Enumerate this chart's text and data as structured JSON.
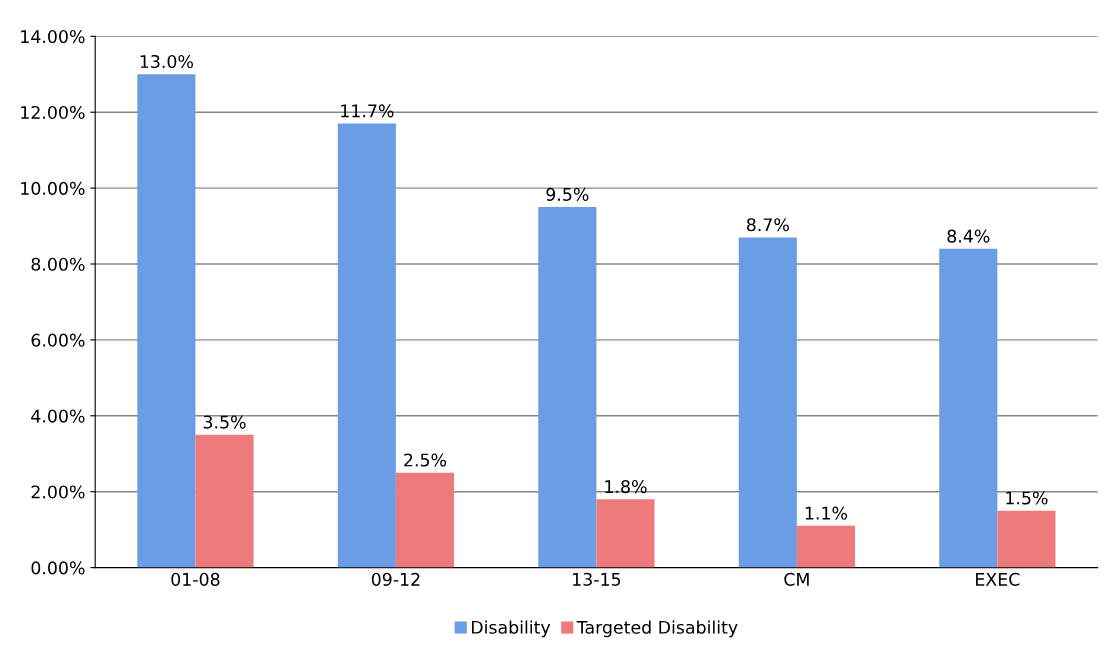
{
  "chart_data": {
    "type": "bar",
    "categories": [
      "01-08",
      "09-12",
      "13-15",
      "CM",
      "EXEC"
    ],
    "series": [
      {
        "name": "Disability",
        "color": "#6a9de6",
        "values": [
          13.0,
          11.7,
          9.5,
          8.7,
          8.4
        ],
        "value_labels": [
          "13.0%",
          "11.7%",
          "9.5%",
          "8.7%",
          "8.4%"
        ]
      },
      {
        "name": "Targeted Disability",
        "color": "#ee7b7b",
        "values": [
          3.5,
          2.5,
          1.8,
          1.1,
          1.5
        ],
        "value_labels": [
          "3.5%",
          "2.5%",
          "1.8%",
          "1.1%",
          "1.5%"
        ]
      }
    ],
    "ylim": [
      0,
      14
    ],
    "yticks": [
      {
        "value": 0,
        "label": "0.00%"
      },
      {
        "value": 2,
        "label": "2.00%"
      },
      {
        "value": 4,
        "label": "4.00%"
      },
      {
        "value": 6,
        "label": "6.00%"
      },
      {
        "value": 8,
        "label": "8.00%"
      },
      {
        "value": 10,
        "label": "10.00%"
      },
      {
        "value": 12,
        "label": "12.00%"
      },
      {
        "value": 14,
        "label": "14.00%"
      }
    ],
    "grid": "y",
    "legend": "bottom"
  }
}
